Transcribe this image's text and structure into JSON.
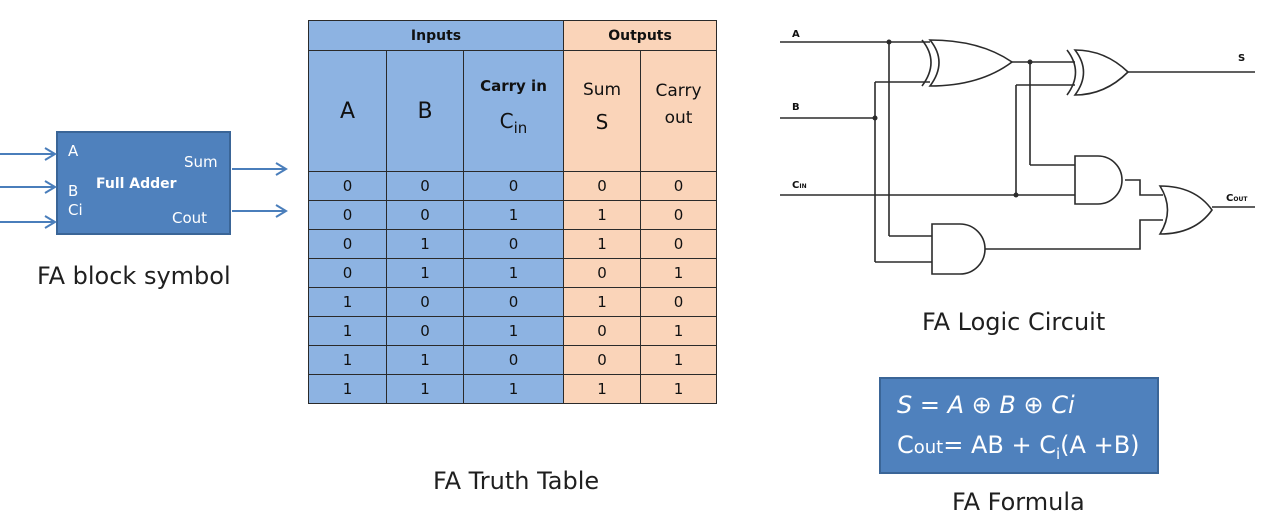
{
  "block": {
    "title": "Full Adder",
    "in_a": "A",
    "in_b": "B",
    "in_ci": "Ci",
    "out_sum": "Sum",
    "out_cout": "Cout",
    "caption": "FA block symbol",
    "color": "#4f81bd"
  },
  "table": {
    "group_inputs": "Inputs",
    "group_outputs": "Outputs",
    "col_a": "A",
    "col_b": "B",
    "col_cin_top": "Carry in",
    "col_cin_main": "C",
    "col_cin_sub": "in",
    "col_sum_top": "Sum",
    "col_sum_main": "S",
    "col_cout_top": "Carry",
    "col_cout_bottom": "out",
    "rows": [
      [
        "0",
        "0",
        "0",
        "0",
        "0"
      ],
      [
        "0",
        "0",
        "1",
        "1",
        "0"
      ],
      [
        "0",
        "1",
        "0",
        "1",
        "0"
      ],
      [
        "0",
        "1",
        "1",
        "0",
        "1"
      ],
      [
        "1",
        "0",
        "0",
        "1",
        "0"
      ],
      [
        "1",
        "0",
        "1",
        "0",
        "1"
      ],
      [
        "1",
        "1",
        "0",
        "0",
        "1"
      ],
      [
        "1",
        "1",
        "1",
        "1",
        "1"
      ]
    ],
    "caption": "FA Truth Table",
    "input_color": "#8db3e2",
    "output_color": "#fad4b9"
  },
  "circuit": {
    "label_a": "A",
    "label_b": "B",
    "label_cin_main": "C",
    "label_cin_sub": "IN",
    "label_s": "S",
    "label_cout_main": "C",
    "label_cout_sub": "OUT",
    "caption": "FA Logic Circuit"
  },
  "formula": {
    "line1": "S = A ⊕ B ⊕ Ci",
    "line2_c": "C",
    "line2_out": "out",
    "line2_eq": "= AB + C",
    "line2_i": "i",
    "line2_tail": "(A +B)",
    "caption": "FA Formula",
    "color": "#4f81bd"
  }
}
